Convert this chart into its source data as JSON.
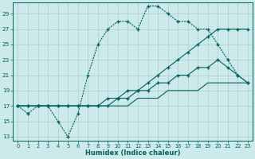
{
  "xlabel": "Humidex (Indice chaleur)",
  "bg_color": "#cceaea",
  "line_color": "#006060",
  "grid_color": "#aacccc",
  "xlim": [
    -0.5,
    23.5
  ],
  "ylim": [
    12.5,
    30.5
  ],
  "xticks": [
    0,
    1,
    2,
    3,
    4,
    5,
    6,
    7,
    8,
    9,
    10,
    11,
    12,
    13,
    14,
    15,
    16,
    17,
    18,
    19,
    20,
    21,
    22,
    23
  ],
  "yticks": [
    13,
    15,
    17,
    19,
    21,
    23,
    25,
    27,
    29
  ],
  "line1": [
    17,
    16,
    17,
    17,
    15,
    13,
    16,
    21,
    25,
    27,
    28,
    28,
    27,
    30,
    30,
    29,
    28,
    28,
    27,
    27,
    25,
    23,
    21,
    20
  ],
  "line2": [
    17,
    17,
    17,
    17,
    17,
    17,
    17,
    17,
    17,
    18,
    18,
    19,
    19,
    20,
    21,
    22,
    23,
    24,
    25,
    26,
    27,
    27,
    27,
    27
  ],
  "line3": [
    17,
    17,
    17,
    17,
    17,
    17,
    17,
    17,
    17,
    17,
    17,
    17,
    18,
    18,
    18,
    19,
    19,
    19,
    19,
    20,
    20,
    20,
    20,
    20
  ],
  "line4": [
    17,
    17,
    17,
    17,
    17,
    17,
    17,
    17,
    17,
    17,
    18,
    18,
    19,
    19,
    20,
    20,
    21,
    21,
    22,
    22,
    23,
    22,
    21,
    20
  ]
}
